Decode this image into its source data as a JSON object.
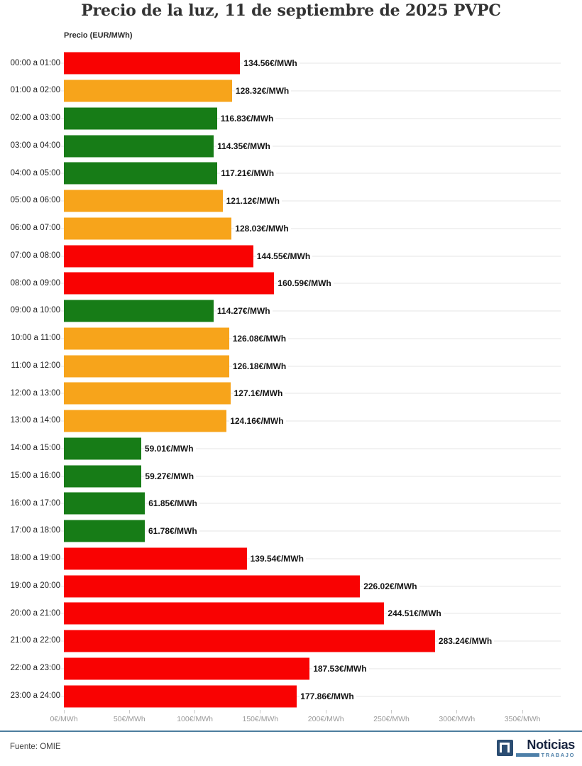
{
  "header": {
    "title": "Precio de la luz, 11 de septiembre de 2025 PVPC"
  },
  "chart": {
    "axis_title": "Precio (EUR/MWh)",
    "colors": {
      "red": "#f90202",
      "orange": "#f7a41b",
      "green": "#177c17"
    }
  },
  "chart_data": {
    "type": "bar",
    "orientation": "horizontal",
    "title": "Precio de la luz, 11 de septiembre de 2025 PVPC",
    "xlabel": "Precio (EUR/MWh)",
    "ylabel": "",
    "xlim": [
      0,
      380
    ],
    "grid": "horizontal-per-category",
    "x_ticks": [
      "0€/MWh",
      "50€/MWh",
      "100€/MWh",
      "150€/MWh",
      "200€/MWh",
      "250€/MWh",
      "300€/MWh",
      "350€/MWh"
    ],
    "x_tick_values": [
      0,
      50,
      100,
      150,
      200,
      250,
      300,
      350
    ],
    "categories": [
      "00:00 a 01:00",
      "01:00 a 02:00",
      "02:00 a 03:00",
      "03:00 a 04:00",
      "04:00 a 05:00",
      "05:00 a 06:00",
      "06:00 a 07:00",
      "07:00 a 08:00",
      "08:00 a 09:00",
      "09:00 a 10:00",
      "10:00 a 11:00",
      "11:00 a 12:00",
      "12:00 a 13:00",
      "13:00 a 14:00",
      "14:00 a 15:00",
      "15:00 a 16:00",
      "16:00 a 17:00",
      "17:00 a 18:00",
      "18:00 a 19:00",
      "19:00 a 20:00",
      "20:00 a 21:00",
      "21:00 a 22:00",
      "22:00 a 23:00",
      "23:00 a 24:00"
    ],
    "values": [
      134.56,
      128.32,
      116.83,
      114.35,
      117.21,
      121.12,
      128.03,
      144.55,
      160.59,
      114.27,
      126.08,
      126.18,
      127.1,
      124.16,
      59.01,
      59.27,
      61.85,
      61.78,
      139.54,
      226.02,
      244.51,
      283.24,
      187.53,
      177.86
    ],
    "value_labels": [
      "134.56€/MWh",
      "128.32€/MWh",
      "116.83€/MWh",
      "114.35€/MWh",
      "117.21€/MWh",
      "121.12€/MWh",
      "128.03€/MWh",
      "144.55€/MWh",
      "160.59€/MWh",
      "114.27€/MWh",
      "126.08€/MWh",
      "126.18€/MWh",
      "127.1€/MWh",
      "124.16€/MWh",
      "59.01€/MWh",
      "59.27€/MWh",
      "61.85€/MWh",
      "61.78€/MWh",
      "139.54€/MWh",
      "226.02€/MWh",
      "244.51€/MWh",
      "283.24€/MWh",
      "187.53€/MWh",
      "177.86€/MWh"
    ],
    "bar_colors": [
      "red",
      "orange",
      "green",
      "green",
      "green",
      "orange",
      "orange",
      "red",
      "red",
      "green",
      "orange",
      "orange",
      "orange",
      "orange",
      "green",
      "green",
      "green",
      "green",
      "red",
      "red",
      "red",
      "red",
      "red",
      "red"
    ]
  },
  "footer": {
    "source": "Fuente: OMIE",
    "logo_name": "Noticias",
    "logo_sub": "TRABAJO"
  }
}
